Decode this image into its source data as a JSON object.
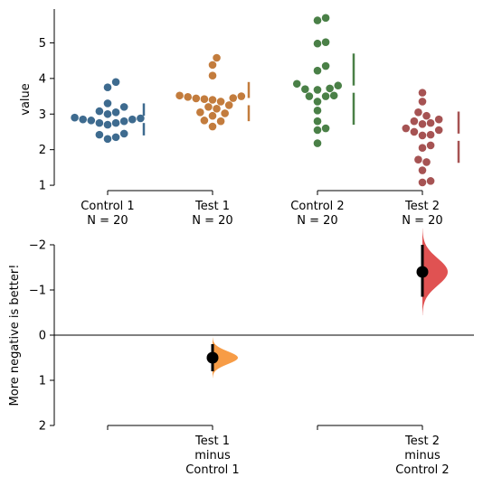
{
  "chart_data": [
    {
      "type": "scatter",
      "subtype": "swarm",
      "ylabel": "value",
      "ylim": [
        0.85,
        5.95
      ],
      "yticks": [
        1,
        2,
        3,
        4,
        5
      ],
      "groups": [
        {
          "label_line1": "Control 1",
          "label_line2": "N = 20",
          "color": "#3e6b8f",
          "values": [
            3.9,
            3.75,
            3.3,
            3.2,
            3.08,
            3.05,
            3.0,
            2.9,
            2.88,
            2.85,
            2.85,
            2.82,
            2.8,
            2.75,
            2.75,
            2.7,
            2.45,
            2.42,
            2.35,
            2.3
          ],
          "mean": 2.85,
          "sd": 0.45
        },
        {
          "label_line1": "Test 1",
          "label_line2": "N = 20",
          "color": "#c37c3d",
          "values": [
            4.58,
            4.38,
            4.08,
            3.52,
            3.5,
            3.48,
            3.45,
            3.44,
            3.42,
            3.4,
            3.35,
            3.25,
            3.2,
            3.15,
            3.05,
            3.02,
            2.95,
            2.82,
            2.8,
            2.65
          ],
          "mean": 3.35,
          "sd": 0.55
        },
        {
          "label_line1": "Control 2",
          "label_line2": "N = 20",
          "color": "#4a8047",
          "values": [
            5.7,
            5.63,
            5.02,
            4.98,
            4.35,
            4.22,
            3.85,
            3.72,
            3.7,
            3.68,
            3.52,
            3.5,
            3.5,
            3.35,
            3.1,
            2.8,
            2.6,
            2.55,
            2.18,
            3.8
          ],
          "mean": 3.7,
          "sd": 1.0
        },
        {
          "label_line1": "Test 2",
          "label_line2": "N = 20",
          "color": "#a65353",
          "values": [
            3.6,
            3.35,
            3.05,
            2.95,
            2.85,
            2.8,
            2.75,
            2.72,
            2.6,
            2.55,
            2.5,
            2.42,
            2.4,
            2.12,
            2.05,
            1.72,
            1.65,
            1.42,
            1.12,
            1.08
          ],
          "mean": 2.35,
          "sd": 0.72
        }
      ]
    },
    {
      "type": "scatter",
      "subtype": "mean-difference",
      "ylabel": "More negative is better!",
      "ylim": [
        2,
        -2
      ],
      "yticks": [
        -2,
        -1,
        0,
        1,
        2
      ],
      "ytick_labels": [
        "−2",
        "−1",
        "0",
        "1",
        "2"
      ],
      "comparisons": [
        {
          "label_line1": "Test 1",
          "label_line2": "minus",
          "label_line3": "Control 1",
          "group_index": 1,
          "color": "#f79c46",
          "mean_diff": 0.5,
          "ci": [
            0.2,
            0.8
          ],
          "dist_sd": 0.14
        },
        {
          "label_line1": "Test 2",
          "label_line2": "minus",
          "label_line3": "Control 2",
          "group_index": 3,
          "color": "#e05252",
          "mean_diff": -1.4,
          "ci": [
            -2.0,
            -0.85
          ],
          "dist_sd": 0.3
        }
      ]
    }
  ]
}
